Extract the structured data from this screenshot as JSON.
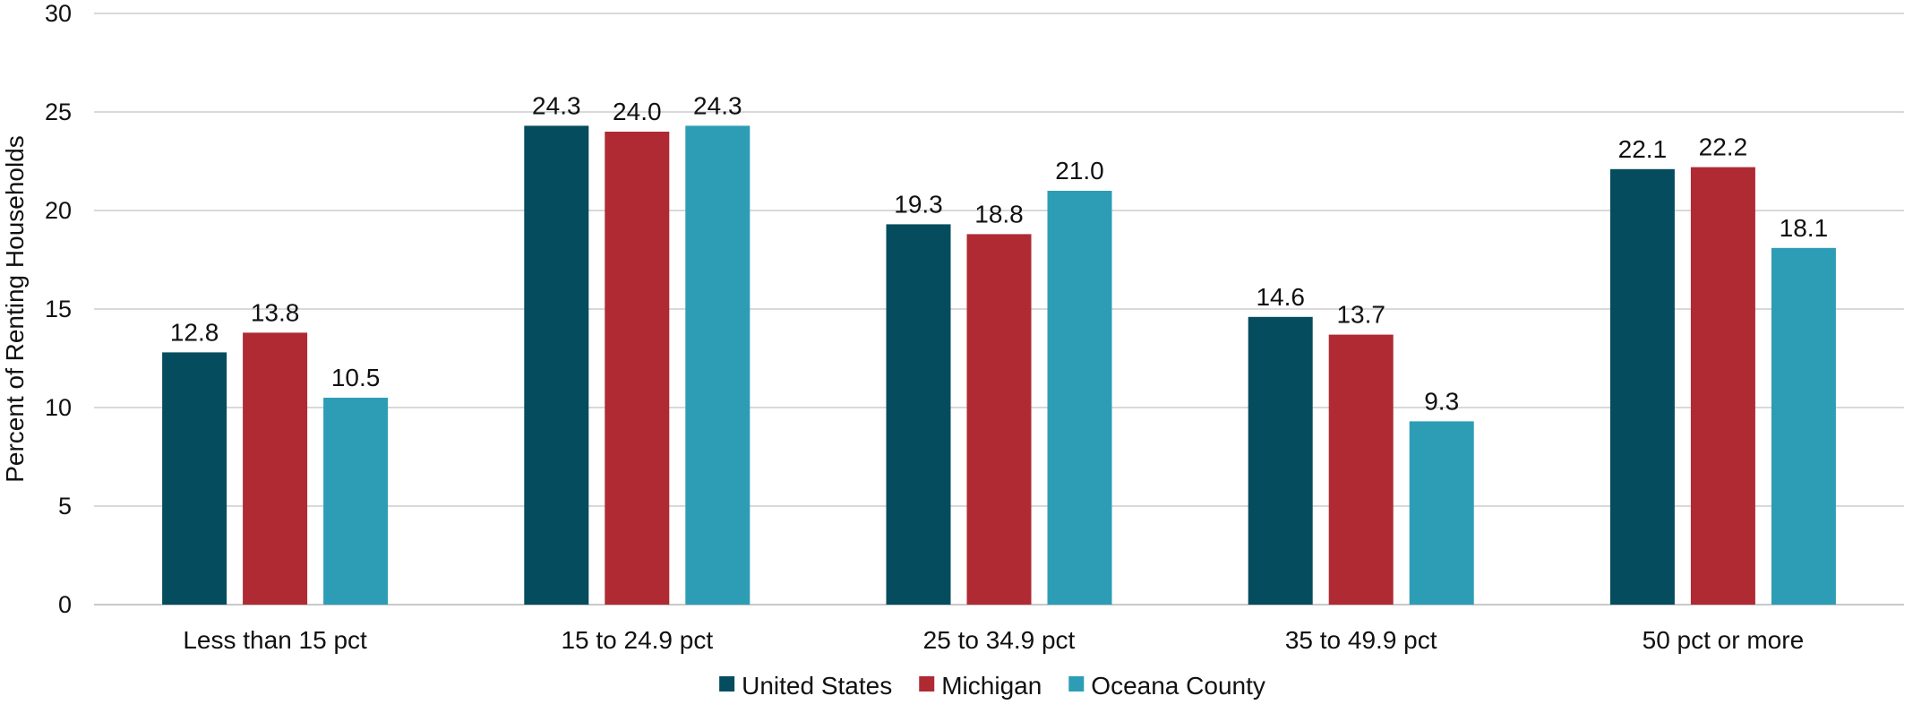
{
  "chart_data": {
    "type": "bar",
    "categories": [
      "Less than 15 pct",
      "15 to 24.9 pct",
      "25 to 34.9 pct",
      "35 to 49.9 pct",
      "50 pct or more"
    ],
    "series": [
      {
        "name": "United States",
        "color": "#054c5e",
        "values": [
          12.8,
          24.3,
          19.3,
          14.6,
          22.1
        ]
      },
      {
        "name": "Michigan",
        "color": "#af2a33",
        "values": [
          13.8,
          24.0,
          18.8,
          13.7,
          22.2
        ]
      },
      {
        "name": "Oceana County",
        "color": "#2d9db5",
        "values": [
          10.5,
          24.3,
          21.0,
          9.3,
          18.1
        ]
      }
    ],
    "ylabel": "Percent of Renting Households",
    "ylim": [
      0,
      30
    ],
    "yticks": [
      0,
      5,
      10,
      15,
      20,
      25,
      30
    ],
    "grid": true,
    "legend_position": "bottom"
  }
}
